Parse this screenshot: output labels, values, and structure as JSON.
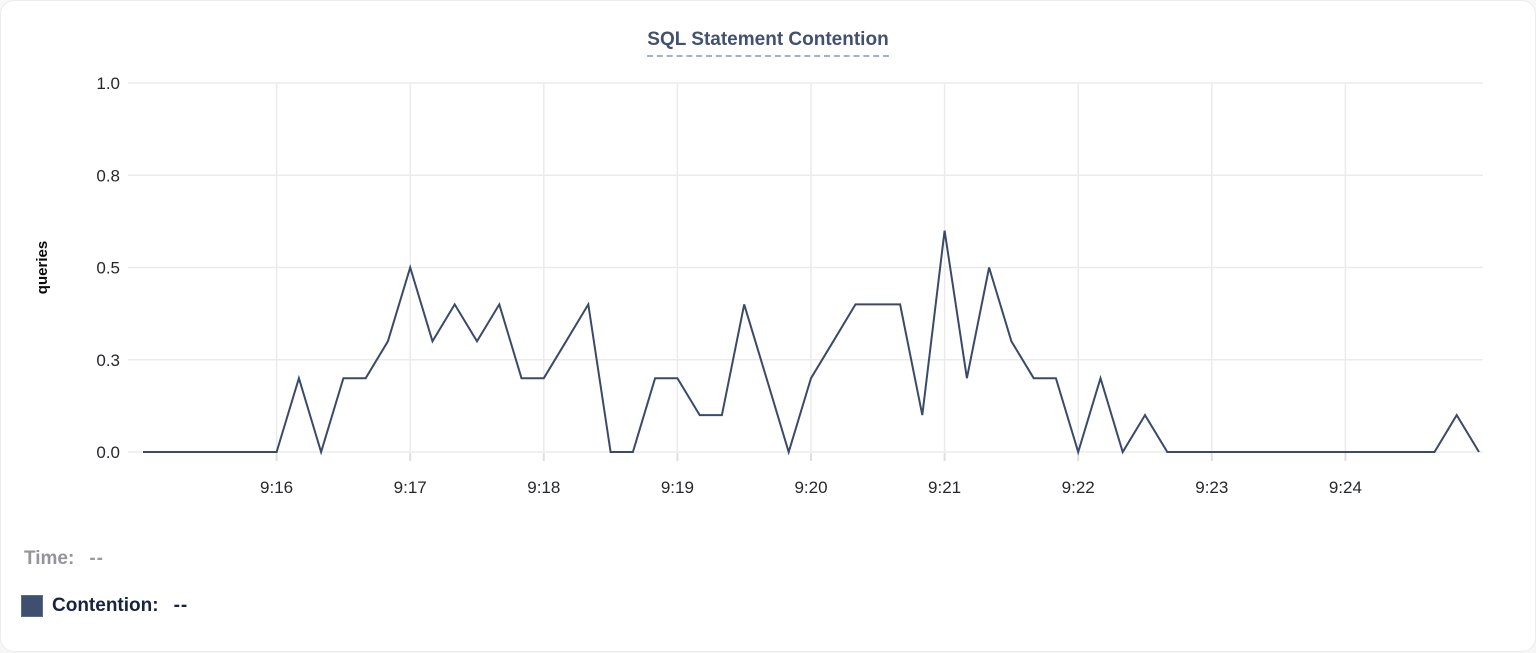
{
  "chart_data": {
    "type": "line",
    "title": "SQL Statement Contention",
    "xlabel": "",
    "ylabel": "queries",
    "ylim": [
      0,
      1.0
    ],
    "grid": true,
    "y_ticks": [
      {
        "label": "1.0",
        "value": 1.0
      },
      {
        "label": "0.8",
        "value": 0.75
      },
      {
        "label": "0.5",
        "value": 0.5
      },
      {
        "label": "0.3",
        "value": 0.25
      },
      {
        "label": "0.0",
        "value": 0.0
      }
    ],
    "x_ticks": [
      "9:16",
      "9:17",
      "9:18",
      "9:19",
      "9:20",
      "9:21",
      "9:22",
      "9:23",
      "9:24"
    ],
    "x_range": [
      "9:15:00",
      "9:25:00"
    ],
    "sample_interval_seconds": 10,
    "legend_position": "bottom-left",
    "series": [
      {
        "name": "Contention",
        "color": "#3b4a69",
        "points": [
          {
            "t": "9:15:00",
            "v": 0
          },
          {
            "t": "9:15:10",
            "v": 0
          },
          {
            "t": "9:15:20",
            "v": 0
          },
          {
            "t": "9:15:30",
            "v": 0
          },
          {
            "t": "9:15:40",
            "v": 0
          },
          {
            "t": "9:15:50",
            "v": 0
          },
          {
            "t": "9:16:00",
            "v": 0
          },
          {
            "t": "9:16:10",
            "v": 0.2
          },
          {
            "t": "9:16:20",
            "v": 0
          },
          {
            "t": "9:16:30",
            "v": 0.2
          },
          {
            "t": "9:16:40",
            "v": 0.2
          },
          {
            "t": "9:16:50",
            "v": 0.3
          },
          {
            "t": "9:17:00",
            "v": 0.5
          },
          {
            "t": "9:17:10",
            "v": 0.3
          },
          {
            "t": "9:17:20",
            "v": 0.4
          },
          {
            "t": "9:17:30",
            "v": 0.3
          },
          {
            "t": "9:17:40",
            "v": 0.4
          },
          {
            "t": "9:17:50",
            "v": 0.2
          },
          {
            "t": "9:18:00",
            "v": 0.2
          },
          {
            "t": "9:18:10",
            "v": 0.3
          },
          {
            "t": "9:18:20",
            "v": 0.4
          },
          {
            "t": "9:18:30",
            "v": 0
          },
          {
            "t": "9:18:40",
            "v": 0
          },
          {
            "t": "9:18:50",
            "v": 0.2
          },
          {
            "t": "9:19:00",
            "v": 0.2
          },
          {
            "t": "9:19:10",
            "v": 0.1
          },
          {
            "t": "9:19:20",
            "v": 0.1
          },
          {
            "t": "9:19:30",
            "v": 0.4
          },
          {
            "t": "9:19:40",
            "v": 0.2
          },
          {
            "t": "9:19:50",
            "v": 0
          },
          {
            "t": "9:20:00",
            "v": 0.2
          },
          {
            "t": "9:20:10",
            "v": 0.3
          },
          {
            "t": "9:20:20",
            "v": 0.4
          },
          {
            "t": "9:20:30",
            "v": 0.4
          },
          {
            "t": "9:20:40",
            "v": 0.4
          },
          {
            "t": "9:20:50",
            "v": 0.1
          },
          {
            "t": "9:21:00",
            "v": 0.6
          },
          {
            "t": "9:21:10",
            "v": 0.2
          },
          {
            "t": "9:21:20",
            "v": 0.5
          },
          {
            "t": "9:21:30",
            "v": 0.3
          },
          {
            "t": "9:21:40",
            "v": 0.2
          },
          {
            "t": "9:21:50",
            "v": 0.2
          },
          {
            "t": "9:22:00",
            "v": 0
          },
          {
            "t": "9:22:10",
            "v": 0.2
          },
          {
            "t": "9:22:20",
            "v": 0
          },
          {
            "t": "9:22:30",
            "v": 0.1
          },
          {
            "t": "9:22:40",
            "v": 0
          },
          {
            "t": "9:22:50",
            "v": 0
          },
          {
            "t": "9:23:00",
            "v": 0
          },
          {
            "t": "9:23:10",
            "v": 0
          },
          {
            "t": "9:23:20",
            "v": 0
          },
          {
            "t": "9:23:30",
            "v": 0
          },
          {
            "t": "9:23:40",
            "v": 0
          },
          {
            "t": "9:23:50",
            "v": 0
          },
          {
            "t": "9:24:00",
            "v": 0
          },
          {
            "t": "9:24:10",
            "v": 0
          },
          {
            "t": "9:24:20",
            "v": 0
          },
          {
            "t": "9:24:30",
            "v": 0
          },
          {
            "t": "9:24:40",
            "v": 0
          },
          {
            "t": "9:24:50",
            "v": 0.1
          },
          {
            "t": "9:25:00",
            "v": 0
          }
        ]
      }
    ]
  },
  "legend": {
    "time_label": "Time:",
    "time_value": "--",
    "contention_label": "Contention:",
    "contention_value": "--"
  },
  "colors": {
    "line": "#3b4a69",
    "swatch": "#3f4f70",
    "swatch_border": "#5d6b8a",
    "grid": "#ebebeb",
    "axis_tick_mark": "#e0e0e0",
    "axis_text": "#26282b",
    "ylabel_text": "#0a0a0a",
    "title": "#42526e",
    "title_underline": "#a6aed6",
    "legend_time": "#94949a",
    "legend_contention": "#18233f",
    "card_bg": "#ffffff",
    "card_border": "#ececec"
  }
}
